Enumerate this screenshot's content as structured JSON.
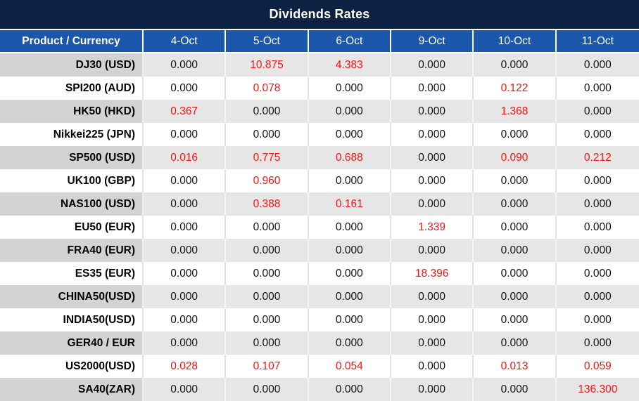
{
  "title": "Dividends Rates",
  "colors": {
    "title_bg": "#0D2243",
    "header_bg": "#1B57AC",
    "header_text": "#FFFFFF",
    "row_gray_label_bg": "#D3D3D3",
    "row_gray_cell_bg": "#E6E6E6",
    "row_white_bg": "#FFFFFF",
    "value_black": "#131313",
    "value_red": "#FB1212"
  },
  "chart_data": {
    "type": "table",
    "title": "Dividends Rates",
    "columns": [
      "Product / Currency",
      "4-Oct",
      "5-Oct",
      "6-Oct",
      "9-Oct",
      "10-Oct",
      "11-Oct"
    ],
    "rows": [
      {
        "product": "DJ30 (USD)",
        "values": [
          "0.000",
          "10.875",
          "4.383",
          "0.000",
          "0.000",
          "0.000"
        ]
      },
      {
        "product": "SPI200 (AUD)",
        "values": [
          "0.000",
          "0.078",
          "0.000",
          "0.000",
          "0.122",
          "0.000"
        ]
      },
      {
        "product": "HK50 (HKD)",
        "values": [
          "0.367",
          "0.000",
          "0.000",
          "0.000",
          "1.368",
          "0.000"
        ]
      },
      {
        "product": "Nikkei225 (JPN)",
        "values": [
          "0.000",
          "0.000",
          "0.000",
          "0.000",
          "0.000",
          "0.000"
        ]
      },
      {
        "product": "SP500 (USD)",
        "values": [
          "0.016",
          "0.775",
          "0.688",
          "0.000",
          "0.090",
          "0.212"
        ]
      },
      {
        "product": "UK100 (GBP)",
        "values": [
          "0.000",
          "0.960",
          "0.000",
          "0.000",
          "0.000",
          "0.000"
        ]
      },
      {
        "product": "NAS100 (USD)",
        "values": [
          "0.000",
          "0.388",
          "0.161",
          "0.000",
          "0.000",
          "0.000"
        ]
      },
      {
        "product": "EU50 (EUR)",
        "values": [
          "0.000",
          "0.000",
          "0.000",
          "1.339",
          "0.000",
          "0.000"
        ]
      },
      {
        "product": "FRA40 (EUR)",
        "values": [
          "0.000",
          "0.000",
          "0.000",
          "0.000",
          "0.000",
          "0.000"
        ]
      },
      {
        "product": "ES35 (EUR)",
        "values": [
          "0.000",
          "0.000",
          "0.000",
          "18.396",
          "0.000",
          "0.000"
        ]
      },
      {
        "product": "CHINA50(USD)",
        "values": [
          "0.000",
          "0.000",
          "0.000",
          "0.000",
          "0.000",
          "0.000"
        ]
      },
      {
        "product": "INDIA50(USD)",
        "values": [
          "0.000",
          "0.000",
          "0.000",
          "0.000",
          "0.000",
          "0.000"
        ]
      },
      {
        "product": "GER40 / EUR",
        "values": [
          "0.000",
          "0.000",
          "0.000",
          "0.000",
          "0.000",
          "0.000"
        ]
      },
      {
        "product": "US2000(USD)",
        "values": [
          "0.028",
          "0.107",
          "0.054",
          "0.000",
          "0.013",
          "0.059"
        ]
      },
      {
        "product": "SA40(ZAR)",
        "values": [
          "0.000",
          "0.000",
          "0.000",
          "0.000",
          "0.000",
          "136.300"
        ]
      }
    ],
    "highlight_rule": "non-zero values rendered in red",
    "layout": {
      "row_striping": "odd rows gray, even rows white",
      "first_column_align": "right",
      "value_align": "center"
    }
  }
}
